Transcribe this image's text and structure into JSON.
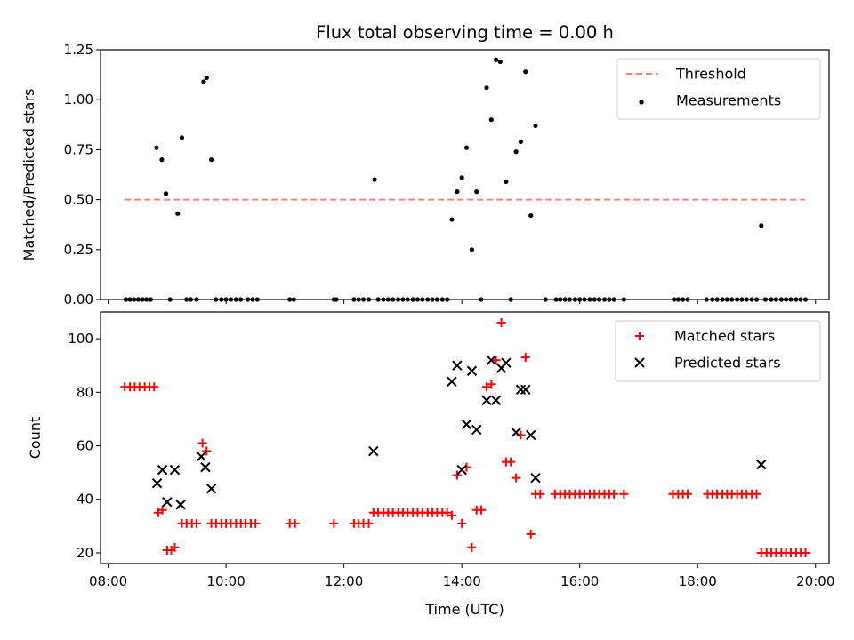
{
  "chart_data": [
    {
      "type": "scatter",
      "title": "Flux total observing time = 0.00 h",
      "xlabel": "",
      "ylabel": "Matched/Predicted stars",
      "ylim": [
        0,
        1.25
      ],
      "yticks": [
        0.0,
        0.25,
        0.5,
        0.75,
        1.0,
        1.25
      ],
      "ytick_labels": [
        "0.00",
        "0.25",
        "0.50",
        "0.75",
        "1.00",
        "1.25"
      ],
      "xlim_hours": [
        7.87,
        20.23
      ],
      "xticks_hours": [
        8,
        10,
        12,
        14,
        16,
        18,
        20
      ],
      "grid": false,
      "legend_position": "top-right",
      "threshold": {
        "name": "Threshold",
        "value": 0.5,
        "x_range_hours": [
          8.28,
          19.82
        ],
        "color": "#ff7f7f"
      },
      "series": [
        {
          "name": "Measurements",
          "color": "#000000",
          "marker": "dot",
          "points": [
            [
              8.3,
              0
            ],
            [
              8.37,
              0
            ],
            [
              8.44,
              0
            ],
            [
              8.51,
              0
            ],
            [
              8.58,
              0
            ],
            [
              8.65,
              0
            ],
            [
              8.72,
              0
            ],
            [
              8.82,
              0.76
            ],
            [
              8.91,
              0.7
            ],
            [
              8.98,
              0.53
            ],
            [
              9.05,
              0
            ],
            [
              9.18,
              0.43
            ],
            [
              9.25,
              0.81
            ],
            [
              9.33,
              0
            ],
            [
              9.4,
              0
            ],
            [
              9.5,
              0
            ],
            [
              9.62,
              1.09
            ],
            [
              9.67,
              1.11
            ],
            [
              9.75,
              0.7
            ],
            [
              9.83,
              0
            ],
            [
              9.92,
              0
            ],
            [
              10.0,
              0
            ],
            [
              10.08,
              0
            ],
            [
              10.17,
              0
            ],
            [
              10.25,
              0
            ],
            [
              10.37,
              0
            ],
            [
              10.45,
              0
            ],
            [
              10.53,
              0
            ],
            [
              11.08,
              0
            ],
            [
              11.15,
              0
            ],
            [
              11.83,
              0
            ],
            [
              11.87,
              0
            ],
            [
              12.17,
              0
            ],
            [
              12.25,
              0
            ],
            [
              12.33,
              0
            ],
            [
              12.42,
              0
            ],
            [
              12.52,
              0.6
            ],
            [
              12.58,
              0
            ],
            [
              12.67,
              0
            ],
            [
              12.75,
              0
            ],
            [
              12.83,
              0
            ],
            [
              12.92,
              0
            ],
            [
              13.0,
              0
            ],
            [
              13.08,
              0
            ],
            [
              13.17,
              0
            ],
            [
              13.25,
              0
            ],
            [
              13.33,
              0
            ],
            [
              13.42,
              0
            ],
            [
              13.5,
              0
            ],
            [
              13.58,
              0
            ],
            [
              13.67,
              0
            ],
            [
              13.75,
              0
            ],
            [
              13.83,
              0.4
            ],
            [
              13.92,
              0.54
            ],
            [
              14.0,
              0.61
            ],
            [
              14.08,
              0.76
            ],
            [
              14.17,
              0.25
            ],
            [
              14.25,
              0.54
            ],
            [
              14.33,
              0
            ],
            [
              14.42,
              1.06
            ],
            [
              14.5,
              0.9
            ],
            [
              14.58,
              1.2
            ],
            [
              14.65,
              1.19
            ],
            [
              14.75,
              0.59
            ],
            [
              14.83,
              0
            ],
            [
              14.92,
              0.74
            ],
            [
              15.0,
              0.79
            ],
            [
              15.08,
              1.14
            ],
            [
              15.17,
              0.42
            ],
            [
              15.25,
              0.87
            ],
            [
              15.42,
              0
            ],
            [
              15.6,
              0
            ],
            [
              15.67,
              0
            ],
            [
              15.75,
              0
            ],
            [
              15.83,
              0
            ],
            [
              15.92,
              0
            ],
            [
              16.0,
              0
            ],
            [
              16.08,
              0
            ],
            [
              16.17,
              0
            ],
            [
              16.25,
              0
            ],
            [
              16.33,
              0
            ],
            [
              16.42,
              0
            ],
            [
              16.5,
              0
            ],
            [
              16.58,
              0
            ],
            [
              16.75,
              0
            ],
            [
              17.6,
              0
            ],
            [
              17.67,
              0
            ],
            [
              17.75,
              0
            ],
            [
              17.83,
              0
            ],
            [
              18.15,
              0
            ],
            [
              18.25,
              0
            ],
            [
              18.33,
              0
            ],
            [
              18.42,
              0
            ],
            [
              18.5,
              0
            ],
            [
              18.58,
              0
            ],
            [
              18.67,
              0
            ],
            [
              18.75,
              0
            ],
            [
              18.83,
              0
            ],
            [
              18.92,
              0
            ],
            [
              19.0,
              0
            ],
            [
              19.08,
              0.37
            ],
            [
              19.15,
              0
            ],
            [
              19.25,
              0
            ],
            [
              19.33,
              0
            ],
            [
              19.42,
              0
            ],
            [
              19.5,
              0
            ],
            [
              19.58,
              0
            ],
            [
              19.67,
              0
            ],
            [
              19.75,
              0
            ],
            [
              19.83,
              0
            ]
          ]
        }
      ]
    },
    {
      "type": "scatter",
      "title": "",
      "xlabel": "Time (UTC)",
      "ylabel": "Count",
      "ylim": [
        16,
        110
      ],
      "yticks": [
        20,
        40,
        60,
        80,
        100
      ],
      "ytick_labels": [
        "20",
        "40",
        "60",
        "80",
        "100"
      ],
      "xlim_hours": [
        7.87,
        20.23
      ],
      "xticks_hours": [
        8,
        10,
        12,
        14,
        16,
        18,
        20
      ],
      "xtick_labels": [
        "08:00",
        "10:00",
        "12:00",
        "14:00",
        "16:00",
        "18:00",
        "20:00"
      ],
      "grid": false,
      "legend_position": "top-right",
      "series": [
        {
          "name": "Matched stars",
          "color": "#ff0000",
          "marker": "plus",
          "points": [
            [
              8.28,
              82
            ],
            [
              8.37,
              82
            ],
            [
              8.45,
              82
            ],
            [
              8.53,
              82
            ],
            [
              8.62,
              82
            ],
            [
              8.7,
              82
            ],
            [
              8.78,
              82
            ],
            [
              8.85,
              35
            ],
            [
              8.92,
              36
            ],
            [
              9.0,
              21
            ],
            [
              9.07,
              21
            ],
            [
              9.13,
              22
            ],
            [
              9.25,
              31
            ],
            [
              9.33,
              31
            ],
            [
              9.42,
              31
            ],
            [
              9.5,
              31
            ],
            [
              9.6,
              61
            ],
            [
              9.67,
              58
            ],
            [
              9.75,
              31
            ],
            [
              9.83,
              31
            ],
            [
              9.92,
              31
            ],
            [
              10.0,
              31
            ],
            [
              10.08,
              31
            ],
            [
              10.17,
              31
            ],
            [
              10.25,
              31
            ],
            [
              10.33,
              31
            ],
            [
              10.42,
              31
            ],
            [
              10.5,
              31
            ],
            [
              11.08,
              31
            ],
            [
              11.17,
              31
            ],
            [
              11.83,
              31
            ],
            [
              12.17,
              31
            ],
            [
              12.25,
              31
            ],
            [
              12.33,
              31
            ],
            [
              12.42,
              31
            ],
            [
              12.5,
              35
            ],
            [
              12.58,
              35
            ],
            [
              12.67,
              35
            ],
            [
              12.75,
              35
            ],
            [
              12.83,
              35
            ],
            [
              12.92,
              35
            ],
            [
              13.0,
              35
            ],
            [
              13.08,
              35
            ],
            [
              13.17,
              35
            ],
            [
              13.25,
              35
            ],
            [
              13.33,
              35
            ],
            [
              13.42,
              35
            ],
            [
              13.5,
              35
            ],
            [
              13.58,
              35
            ],
            [
              13.67,
              35
            ],
            [
              13.75,
              35
            ],
            [
              13.83,
              34
            ],
            [
              13.92,
              49
            ],
            [
              14.0,
              31
            ],
            [
              14.08,
              52
            ],
            [
              14.17,
              22
            ],
            [
              14.25,
              36
            ],
            [
              14.33,
              36
            ],
            [
              14.42,
              82
            ],
            [
              14.5,
              83
            ],
            [
              14.58,
              92
            ],
            [
              14.67,
              106
            ],
            [
              14.75,
              54
            ],
            [
              14.83,
              54
            ],
            [
              14.92,
              48
            ],
            [
              15.0,
              64
            ],
            [
              15.08,
              93
            ],
            [
              15.17,
              27
            ],
            [
              15.25,
              42
            ],
            [
              15.33,
              42
            ],
            [
              15.58,
              42
            ],
            [
              15.67,
              42
            ],
            [
              15.75,
              42
            ],
            [
              15.83,
              42
            ],
            [
              15.92,
              42
            ],
            [
              16.0,
              42
            ],
            [
              16.08,
              42
            ],
            [
              16.17,
              42
            ],
            [
              16.25,
              42
            ],
            [
              16.33,
              42
            ],
            [
              16.42,
              42
            ],
            [
              16.5,
              42
            ],
            [
              16.58,
              42
            ],
            [
              16.75,
              42
            ],
            [
              17.58,
              42
            ],
            [
              17.67,
              42
            ],
            [
              17.75,
              42
            ],
            [
              17.83,
              42
            ],
            [
              18.17,
              42
            ],
            [
              18.25,
              42
            ],
            [
              18.33,
              42
            ],
            [
              18.42,
              42
            ],
            [
              18.5,
              42
            ],
            [
              18.58,
              42
            ],
            [
              18.67,
              42
            ],
            [
              18.75,
              42
            ],
            [
              18.83,
              42
            ],
            [
              18.92,
              42
            ],
            [
              19.0,
              42
            ],
            [
              19.08,
              20
            ],
            [
              19.17,
              20
            ],
            [
              19.25,
              20
            ],
            [
              19.33,
              20
            ],
            [
              19.42,
              20
            ],
            [
              19.5,
              20
            ],
            [
              19.58,
              20
            ],
            [
              19.67,
              20
            ],
            [
              19.75,
              20
            ],
            [
              19.83,
              20
            ]
          ]
        },
        {
          "name": "Predicted stars",
          "color": "#000000",
          "marker": "x",
          "points": [
            [
              8.83,
              46
            ],
            [
              8.92,
              51
            ],
            [
              9.0,
              39
            ],
            [
              9.13,
              51
            ],
            [
              9.23,
              38
            ],
            [
              9.58,
              56
            ],
            [
              9.65,
              52
            ],
            [
              9.75,
              44
            ],
            [
              12.5,
              58
            ],
            [
              13.83,
              84
            ],
            [
              13.92,
              90
            ],
            [
              14.0,
              51
            ],
            [
              14.08,
              68
            ],
            [
              14.17,
              88
            ],
            [
              14.25,
              66
            ],
            [
              14.42,
              77
            ],
            [
              14.5,
              92
            ],
            [
              14.58,
              77
            ],
            [
              14.67,
              89
            ],
            [
              14.75,
              91
            ],
            [
              14.92,
              65
            ],
            [
              15.0,
              81
            ],
            [
              15.08,
              81
            ],
            [
              15.17,
              64
            ],
            [
              15.25,
              48
            ],
            [
              19.08,
              53
            ]
          ]
        }
      ]
    }
  ]
}
